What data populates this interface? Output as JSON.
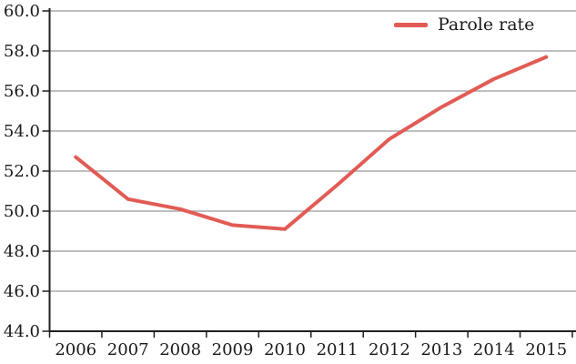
{
  "chart_data": {
    "type": "line",
    "title": "",
    "xlabel": "",
    "ylabel": "",
    "categories": [
      "2006",
      "2007",
      "2008",
      "2009",
      "2010",
      "2011",
      "2012",
      "2013",
      "2014",
      "2015"
    ],
    "series": [
      {
        "name": "Parole rate",
        "color": "#E25B55",
        "values": [
          52.7,
          50.6,
          50.1,
          49.3,
          49.1,
          51.3,
          53.6,
          55.2,
          56.6,
          57.7
        ]
      }
    ],
    "ylim": [
      44.0,
      60.0
    ],
    "y_tick_step": 2.0,
    "y_ticks": [
      44,
      46,
      48,
      50,
      52,
      54,
      56,
      58,
      60
    ],
    "y_tick_labels": [
      "44.0",
      "46.0",
      "48.0",
      "50.0",
      "52.0",
      "54.0",
      "56.0",
      "58.0",
      "60.0"
    ],
    "grid": "horizontal",
    "legend_position": "top-right"
  },
  "colors": {
    "line": "#E25B55",
    "grid": "#999999",
    "axis": "#1f1f1f",
    "text": "#1a1a1a",
    "background": "#ffffff"
  }
}
